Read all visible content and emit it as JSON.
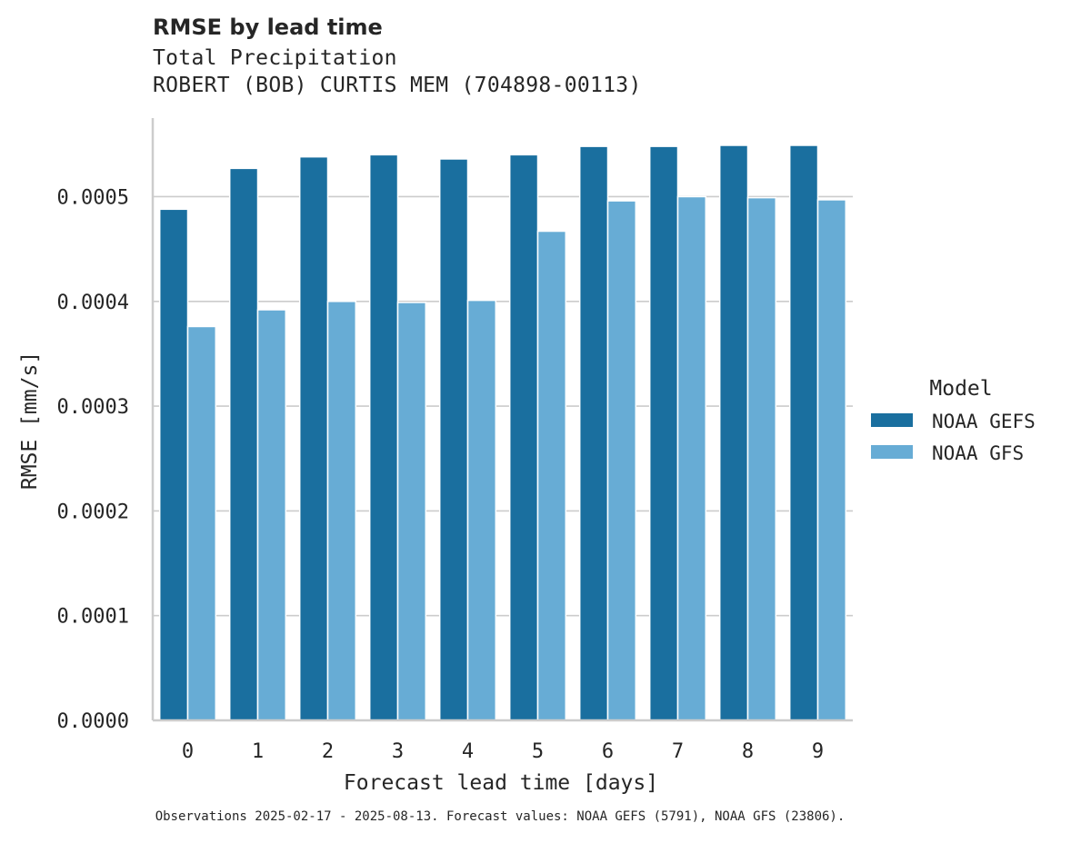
{
  "chart_data": {
    "type": "bar",
    "title": "RMSE by lead time",
    "subtitle_lines": [
      "Total Precipitation",
      "ROBERT (BOB) CURTIS MEM (704898-00113)"
    ],
    "xlabel": "Forecast lead time [days]",
    "ylabel": "RMSE [mm/s]",
    "categories": [
      "0",
      "1",
      "2",
      "3",
      "4",
      "5",
      "6",
      "7",
      "8",
      "9"
    ],
    "ylim": [
      0,
      0.000575
    ],
    "yticks": [
      0.0,
      0.0001,
      0.0002,
      0.0003,
      0.0004,
      0.0005
    ],
    "ytick_labels": [
      "0.0000",
      "0.0001",
      "0.0002",
      "0.0003",
      "0.0004",
      "0.0005"
    ],
    "grid": "horizontal",
    "legend": {
      "title": "Model",
      "placement": "right"
    },
    "series": [
      {
        "name": "NOAA GEFS",
        "color": "#1a6f9f",
        "values": [
          0.000488,
          0.000527,
          0.000538,
          0.00054,
          0.000536,
          0.00054,
          0.000548,
          0.000548,
          0.000549,
          0.000549
        ]
      },
      {
        "name": "NOAA GFS",
        "color": "#67acd5",
        "values": [
          0.000376,
          0.000392,
          0.0004,
          0.000399,
          0.000401,
          0.000467,
          0.000496,
          0.0005,
          0.000499,
          0.000497
        ]
      }
    ],
    "footnote": "Observations 2025-02-17 - 2025-08-13. Forecast values: NOAA GEFS (5791), NOAA GFS (23806)."
  }
}
